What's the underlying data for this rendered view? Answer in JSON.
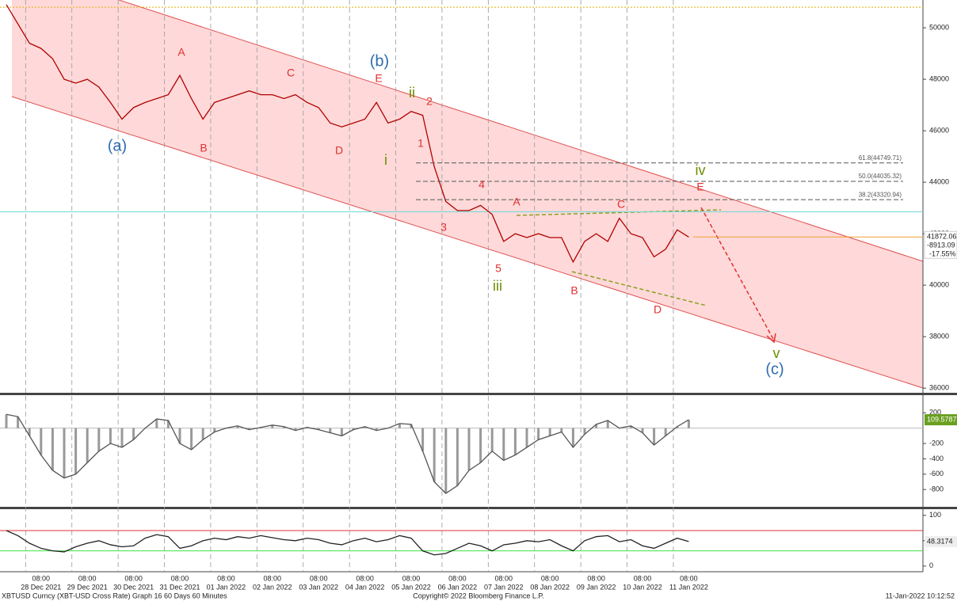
{
  "chart_data": [
    {
      "type": "line",
      "title": "XBTUSD Curncy (XBT-USD Cross Rate) Graph 16 60 Days 60 Minutes",
      "time_label": "08:00",
      "categories": [
        null,
        null,
        null,
        "28 Dec 2021",
        null,
        null,
        null,
        "29 Dec 2021",
        null,
        null,
        null,
        "30 Dec 2021",
        null,
        null,
        null,
        "31 Dec 2021",
        null,
        null,
        null,
        "01 Jan 2022",
        null,
        null,
        null,
        "02 Jan 2022",
        null,
        null,
        null,
        "03 Jan 2022",
        null,
        null,
        null,
        "04 Jan 2022",
        null,
        null,
        null,
        "05 Jan 2022",
        null,
        null,
        null,
        "06 Jan 2022",
        null,
        null,
        null,
        "07 Jan 2022",
        null,
        null,
        null,
        "08 Jan 2022",
        null,
        null,
        null,
        "09 Jan 2022",
        null,
        null,
        null,
        "10 Jan 2022",
        null,
        null,
        null,
        "11 Jan 2022"
      ],
      "series": [
        {
          "name": "XBTUSD",
          "color": "#b00000",
          "values": [
            50900,
            50150,
            49400,
            49200,
            48800,
            48000,
            47850,
            48000,
            47700,
            47100,
            46450,
            46900,
            47100,
            47250,
            47400,
            48150,
            47250,
            46450,
            47100,
            47250,
            47400,
            47550,
            47400,
            47400,
            47250,
            47400,
            47100,
            46900,
            46300,
            46150,
            46300,
            46450,
            47100,
            46300,
            46450,
            46750,
            46600,
            44600,
            43250,
            42900,
            42900,
            43100,
            42750,
            41700,
            42000,
            41850,
            42000,
            41850,
            41850,
            40900,
            41700,
            42000,
            41700,
            42600,
            42000,
            41850,
            41100,
            41400,
            42150,
            41872.06
          ]
        }
      ],
      "ylim": [
        35850,
        51080
      ],
      "yticks": [
        36000,
        38000,
        40000,
        42000,
        44000,
        46000,
        48000,
        50000
      ],
      "last_price": 41872.06,
      "net_change": "-8913.09",
      "pct_change": "-17.55%",
      "levels": [
        {
          "value": 50800,
          "color": "#e0b000"
        },
        {
          "value": 42850,
          "color": "#70d8d8"
        }
      ],
      "fib": [
        {
          "label": "61.8(44749.71)",
          "value": 44749.71
        },
        {
          "label": "50.0(44035.32)",
          "value": 44035.32
        },
        {
          "label": "38.2(43320.94)",
          "value": 43320.94
        }
      ],
      "annotations": [
        {
          "text": "(a)",
          "color": "#2e6db0"
        },
        {
          "text": "(b)",
          "color": "#2e6db0"
        },
        {
          "text": "(c)",
          "color": "#2e6db0"
        },
        {
          "text": "A",
          "color": "#e03030"
        },
        {
          "text": "B",
          "color": "#e03030"
        },
        {
          "text": "C",
          "color": "#e03030"
        },
        {
          "text": "D",
          "color": "#e03030"
        },
        {
          "text": "E",
          "color": "#e03030"
        },
        {
          "text": "1",
          "color": "#e03030"
        },
        {
          "text": "2",
          "color": "#e03030"
        },
        {
          "text": "3",
          "color": "#e03030"
        },
        {
          "text": "4",
          "color": "#e03030"
        },
        {
          "text": "5",
          "color": "#e03030"
        },
        {
          "text": "A",
          "color": "#e03030"
        },
        {
          "text": "B",
          "color": "#e03030"
        },
        {
          "text": "C",
          "color": "#e03030"
        },
        {
          "text": "D",
          "color": "#e03030"
        },
        {
          "text": "E",
          "color": "#e03030"
        },
        {
          "text": "i",
          "color": "#6b8e00"
        },
        {
          "text": "ii",
          "color": "#6b8e00"
        },
        {
          "text": "iii",
          "color": "#6b8e00"
        },
        {
          "text": "iv",
          "color": "#6b8e00"
        },
        {
          "text": "v",
          "color": "#6b8e00"
        }
      ]
    },
    {
      "type": "histogram-line",
      "series": [
        {
          "name": "MACD",
          "color": "#555555",
          "values": [
            180,
            150,
            -100,
            -350,
            -550,
            -650,
            -600,
            -450,
            -300,
            -200,
            -250,
            -150,
            0,
            120,
            100,
            -200,
            -280,
            -150,
            -50,
            0,
            30,
            -20,
            10,
            40,
            20,
            -30,
            10,
            -20,
            -60,
            -100,
            -20,
            20,
            -30,
            0,
            60,
            50,
            -300,
            -700,
            -850,
            -750,
            -550,
            -450,
            -300,
            -420,
            -350,
            -250,
            -150,
            -100,
            -50,
            -250,
            -80,
            50,
            100,
            0,
            30,
            -60,
            -220,
            -100,
            20,
            109.5787
          ]
        }
      ],
      "ylim": [
        -1015,
        420
      ],
      "yticks": [
        200,
        -200,
        -400,
        -600,
        -800
      ],
      "last_value": 109.5787
    },
    {
      "type": "line",
      "series": [
        {
          "name": "RSI",
          "color": "#222222",
          "values": [
            70,
            60,
            45,
            35,
            30,
            28,
            38,
            45,
            50,
            42,
            38,
            40,
            55,
            62,
            58,
            35,
            40,
            50,
            55,
            52,
            58,
            55,
            60,
            56,
            52,
            50,
            55,
            52,
            45,
            42,
            50,
            55,
            48,
            52,
            60,
            55,
            30,
            22,
            25,
            35,
            45,
            40,
            30,
            42,
            45,
            50,
            48,
            52,
            40,
            30,
            50,
            58,
            60,
            48,
            52,
            40,
            35,
            45,
            55,
            48.3174
          ]
        }
      ],
      "ylim": [
        -8,
        109
      ],
      "yticks": [
        0,
        50,
        100
      ],
      "levels": [
        {
          "value": 70,
          "color": "#e03030"
        },
        {
          "value": 30,
          "color": "#40e040"
        }
      ],
      "last_value": 48.3174
    }
  ],
  "footer": {
    "copyright": "Copyright© 2022 Bloomberg Finance L.P.",
    "timestamp": "11-Jan-2022 10:12:52"
  }
}
